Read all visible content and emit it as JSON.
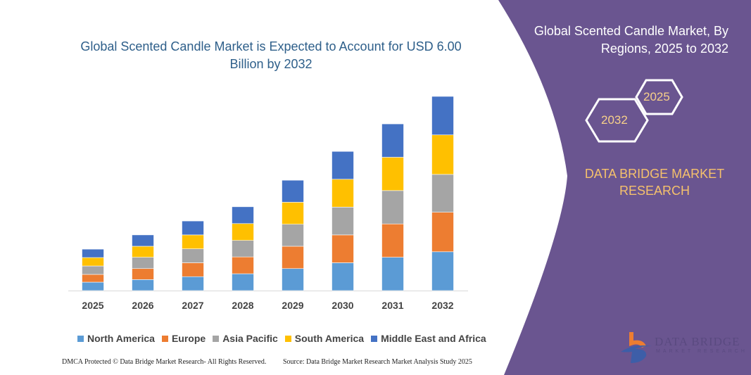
{
  "chart_data": {
    "type": "bar",
    "stacked": true,
    "title": "Global Scented Candle Market is Expected to Account for USD 6.00 Billion by 2032",
    "categories": [
      "2025",
      "2026",
      "2027",
      "2028",
      "2029",
      "2030",
      "2031",
      "2032"
    ],
    "series": [
      {
        "name": "North America",
        "color": "#5b9bd5",
        "values": [
          0.26,
          0.34,
          0.43,
          0.52,
          0.68,
          0.86,
          1.03,
          1.2
        ]
      },
      {
        "name": "Europe",
        "color": "#ed7d31",
        "values": [
          0.24,
          0.34,
          0.43,
          0.52,
          0.69,
          0.86,
          1.03,
          1.22
        ]
      },
      {
        "name": "Asia Pacific",
        "color": "#a5a5a5",
        "values": [
          0.26,
          0.35,
          0.43,
          0.51,
          0.68,
          0.86,
          1.03,
          1.17
        ]
      },
      {
        "name": "South America",
        "color": "#ffc000",
        "values": [
          0.26,
          0.34,
          0.43,
          0.52,
          0.68,
          0.86,
          1.03,
          1.22
        ]
      },
      {
        "name": "Middle East and Africa",
        "color": "#4472c4",
        "values": [
          0.26,
          0.35,
          0.43,
          0.52,
          0.68,
          0.86,
          1.03,
          1.19
        ]
      }
    ],
    "xlabel": "",
    "ylabel": "",
    "grid": false,
    "legend": "bottom"
  },
  "side": {
    "title": "Global Scented Candle Market, By Regions, 2025 to 2032",
    "hex_front": "2032",
    "hex_back": "2025",
    "brand": "DATA BRIDGE MARKET RESEARCH",
    "panel_color": "#6a5590"
  },
  "logo": {
    "name": "DATA BRIDGE",
    "sub": "MARKET RESEARCH"
  },
  "footer": {
    "left": "DMCA Protected © Data Bridge Market Research- All Rights Reserved.",
    "right": "Source: Data Bridge Market Research Market Analysis Study 2025"
  }
}
